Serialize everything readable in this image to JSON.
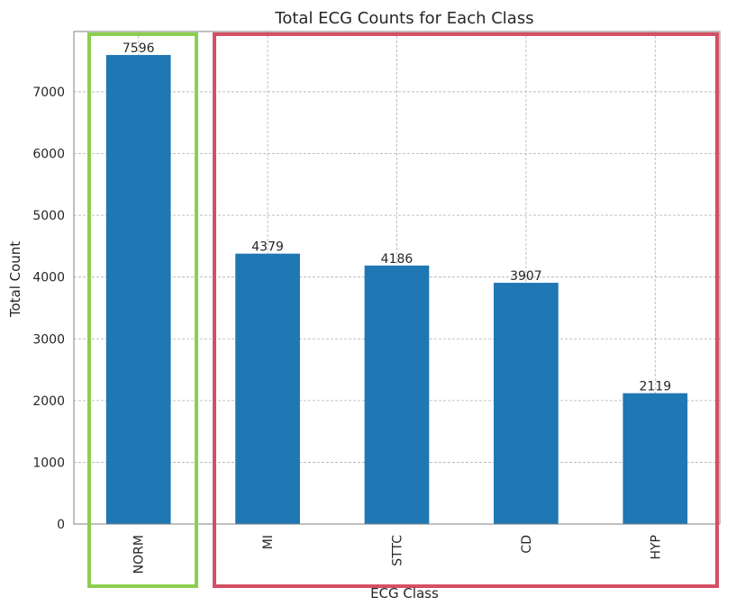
{
  "chart_data": {
    "type": "bar",
    "title": "Total ECG Counts for Each Class",
    "xlabel": "ECG Class",
    "ylabel": "Total Count",
    "categories": [
      "NORM",
      "MI",
      "STTC",
      "CD",
      "HYP"
    ],
    "values": [
      7596,
      4379,
      4186,
      3907,
      2119
    ],
    "data_labels": [
      "7596",
      "4379",
      "4186",
      "3907",
      "2119"
    ],
    "yticks": [
      0,
      1000,
      2000,
      3000,
      4000,
      5000,
      6000,
      7000
    ],
    "ylim": [
      0,
      7976
    ],
    "grid": true,
    "legend": "none",
    "colors": {
      "bar": "#1f77b4",
      "grid": "#b0b0b0",
      "highlight_green": "#8ccf50",
      "highlight_red": "#d44f64",
      "text": "#262626"
    },
    "annotations": [
      {
        "type": "highlight-box",
        "color": "green",
        "covers": [
          "NORM"
        ]
      },
      {
        "type": "highlight-box",
        "color": "red",
        "covers": [
          "MI",
          "STTC",
          "CD",
          "HYP"
        ]
      }
    ]
  }
}
